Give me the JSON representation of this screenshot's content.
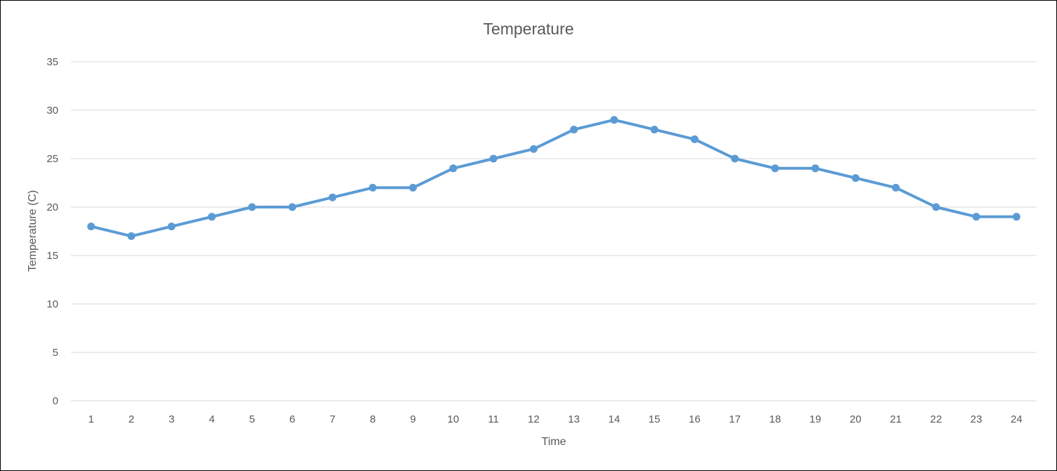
{
  "chart_data": {
    "type": "line",
    "title": "Temperature",
    "xlabel": "Time",
    "ylabel": "Temperature (C)",
    "categories": [
      "1",
      "2",
      "3",
      "4",
      "5",
      "6",
      "7",
      "8",
      "9",
      "10",
      "11",
      "12",
      "13",
      "14",
      "15",
      "16",
      "17",
      "18",
      "19",
      "20",
      "21",
      "22",
      "23",
      "24"
    ],
    "series": [
      {
        "values": [
          18,
          17,
          18,
          19,
          20,
          20,
          21,
          22,
          22,
          24,
          25,
          26,
          28,
          29,
          28,
          27,
          25,
          24,
          24,
          23,
          22,
          20,
          19,
          19
        ],
        "color": "#5b9bd5",
        "markers": true
      }
    ],
    "ylim": [
      0,
      35
    ],
    "yticks": [
      "0",
      "5",
      "10",
      "15",
      "20",
      "25",
      "30",
      "35"
    ],
    "grid": true,
    "legend": "none"
  }
}
